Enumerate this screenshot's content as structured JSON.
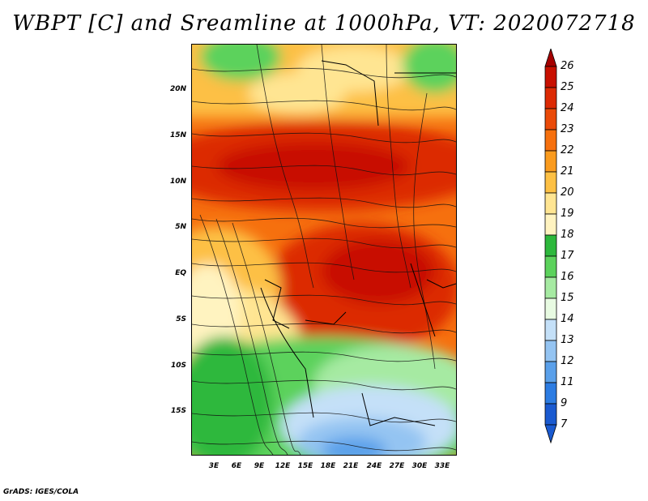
{
  "title": "WBPT [C] and Sreamline at 1000hPa, VT: 2020072718",
  "credit": "GrADS: IGES/COLA",
  "lat_labels": [
    "20N",
    "15N",
    "10N",
    "5N",
    "EQ",
    "5S",
    "10S",
    "15S"
  ],
  "lon_labels": [
    "3E",
    "6E",
    "9E",
    "12E",
    "15E",
    "18E",
    "21E",
    "24E",
    "27E",
    "30E",
    "33E"
  ],
  "colorbar": {
    "labels": [
      "26",
      "25",
      "24",
      "23",
      "22",
      "21",
      "20",
      "19",
      "18",
      "17",
      "16",
      "15",
      "14",
      "13",
      "12",
      "11",
      "9",
      "7"
    ],
    "colors": [
      "#a50000",
      "#c81000",
      "#dc2a04",
      "#ea4a08",
      "#f6700e",
      "#fa9b1e",
      "#fdc044",
      "#ffe592",
      "#fff3c0",
      "#2db83c",
      "#5cd25c",
      "#a6eaa2",
      "#e8fbe2",
      "#c4e0f8",
      "#94c4f2",
      "#5aa0ea",
      "#2c7ce2",
      "#1a5ad0"
    ]
  }
}
